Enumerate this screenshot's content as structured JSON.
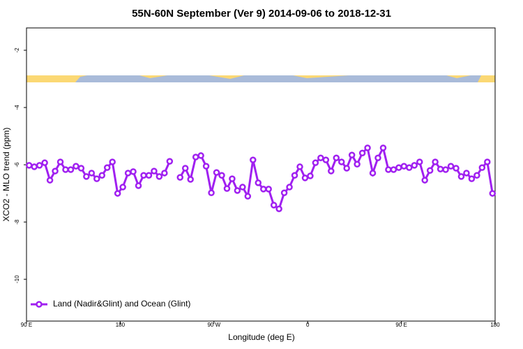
{
  "chart_data": {
    "type": "line",
    "title": "55N-60N September (Ver 9)   2014-09-06 to 2018-12-31",
    "x_label": "Longitude (deg E)",
    "y_label": "XCO2 - MLO trend (ppm)",
    "xlim": [
      90,
      540
    ],
    "xticks": [
      {
        "value": 90,
        "label": "90 E"
      },
      180,
      {
        "value": 270,
        "label": "90 W"
      },
      {
        "value": 360,
        "label": "0"
      },
      {
        "value": 450,
        "label": "90 E"
      },
      {
        "value": 540,
        "label": "180"
      }
    ],
    "ylim": [
      -11.46,
      -1.22
    ],
    "yticks": [
      -10,
      -8,
      -6,
      -4,
      -2
    ],
    "legend": "bottom-left",
    "x": [
      92.5,
      97.5,
      102.5,
      107.5,
      112.5,
      117.5,
      122.5,
      127.5,
      132.5,
      137.5,
      142.5,
      147.5,
      152.5,
      157.5,
      162.5,
      167.5,
      172.5,
      177.5,
      182.5,
      187.5,
      192.5,
      197.5,
      202.5,
      207.5,
      212.5,
      217.5,
      222.5,
      227.5,
      232.5,
      237.5,
      242.5,
      247.5,
      252.5,
      257.5,
      262.5,
      267.5,
      272.5,
      277.5,
      282.5,
      287.5,
      292.5,
      297.5,
      302.5,
      307.5,
      312.5,
      317.5,
      322.5,
      327.5,
      332.5,
      337.5,
      342.5,
      347.5,
      352.5,
      357.5,
      362.5,
      367.5,
      372.5,
      377.5,
      382.5,
      387.5,
      392.5,
      397.5,
      402.5,
      407.5,
      412.5,
      417.5,
      422.5,
      427.5,
      432.5,
      437.5,
      442.5,
      447.5,
      452.5,
      457.5,
      462.5,
      467.5,
      472.5,
      477.5,
      482.5,
      487.5,
      492.5,
      497.5,
      502.5,
      507.5,
      512.5,
      517.5,
      522.5,
      527.5,
      532.5,
      537.5
    ],
    "series": [
      {
        "name": "Land (Nadir&Glint) and Ocean (Glint)",
        "color": "#a020f0",
        "values": [
          -6.02,
          -6.07,
          -6.02,
          -5.93,
          -6.54,
          -6.22,
          -5.9,
          -6.17,
          -6.17,
          -6.05,
          -6.12,
          -6.41,
          -6.29,
          -6.49,
          -6.37,
          -6.1,
          -5.9,
          -7.0,
          -6.78,
          -6.29,
          -6.24,
          -6.73,
          -6.37,
          -6.37,
          -6.22,
          -6.41,
          -6.29,
          -5.88,
          null,
          -6.44,
          -6.12,
          -6.51,
          -5.73,
          -5.68,
          -6.05,
          -6.98,
          -6.27,
          -6.37,
          -6.83,
          -6.49,
          -6.9,
          -6.78,
          -7.1,
          -5.83,
          -6.63,
          -6.85,
          -6.85,
          -7.41,
          -7.54,
          -6.98,
          -6.78,
          -6.37,
          -6.07,
          -6.46,
          -6.39,
          -5.93,
          -5.76,
          -5.83,
          -6.22,
          -5.76,
          -5.9,
          -6.12,
          -5.66,
          -5.98,
          -5.59,
          -5.41,
          -6.29,
          -5.76,
          -5.41,
          -6.17,
          -6.17,
          -6.1,
          -6.05,
          -6.1,
          -6.02,
          -5.9,
          -6.54,
          -6.2,
          -5.9,
          -6.15,
          -6.17,
          -6.05,
          -6.12,
          -6.41,
          -6.29,
          -6.49,
          -6.37,
          -6.1,
          -5.9,
          -7.0
        ]
      }
    ]
  }
}
